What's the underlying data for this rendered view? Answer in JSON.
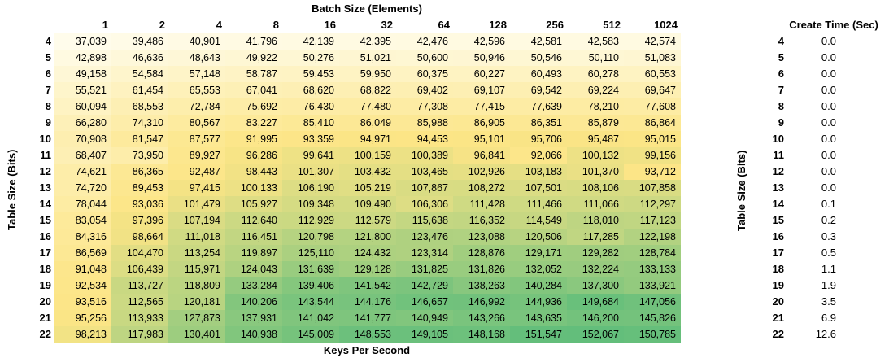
{
  "main": {
    "title": "Batch Size (Elements)",
    "footer": "Keys Per Second",
    "ylabel": "Table Size (Bits)",
    "columns": [
      "1",
      "2",
      "4",
      "8",
      "16",
      "32",
      "64",
      "128",
      "256",
      "512",
      "1024"
    ],
    "rows": [
      {
        "label": "4",
        "values": [
          "37,039",
          "39,486",
          "40,901",
          "41,796",
          "42,139",
          "42,395",
          "42,476",
          "42,596",
          "42,581",
          "42,583",
          "42,574"
        ]
      },
      {
        "label": "5",
        "values": [
          "42,898",
          "46,636",
          "48,643",
          "49,922",
          "50,276",
          "51,021",
          "50,600",
          "50,946",
          "50,546",
          "50,110",
          "51,083"
        ]
      },
      {
        "label": "6",
        "values": [
          "49,158",
          "54,584",
          "57,148",
          "58,787",
          "59,453",
          "59,950",
          "60,375",
          "60,227",
          "60,493",
          "60,278",
          "60,553"
        ]
      },
      {
        "label": "7",
        "values": [
          "55,521",
          "61,454",
          "65,553",
          "67,041",
          "68,620",
          "68,822",
          "69,402",
          "69,107",
          "69,542",
          "69,224",
          "69,647"
        ]
      },
      {
        "label": "8",
        "values": [
          "60,094",
          "68,553",
          "72,784",
          "75,692",
          "76,430",
          "77,480",
          "77,308",
          "77,415",
          "77,639",
          "78,210",
          "77,608"
        ]
      },
      {
        "label": "9",
        "values": [
          "66,280",
          "74,310",
          "80,567",
          "83,227",
          "85,410",
          "86,049",
          "85,988",
          "86,905",
          "86,351",
          "85,879",
          "86,864"
        ]
      },
      {
        "label": "10",
        "values": [
          "70,908",
          "81,547",
          "87,577",
          "91,995",
          "93,359",
          "94,971",
          "94,453",
          "95,101",
          "95,706",
          "95,487",
          "95,015"
        ]
      },
      {
        "label": "11",
        "values": [
          "68,407",
          "73,950",
          "89,927",
          "96,286",
          "99,641",
          "100,159",
          "100,389",
          "96,841",
          "92,066",
          "100,132",
          "99,156"
        ]
      },
      {
        "label": "12",
        "values": [
          "74,621",
          "86,365",
          "92,487",
          "98,443",
          "101,307",
          "103,432",
          "103,465",
          "102,926",
          "103,183",
          "101,370",
          "93,712"
        ]
      },
      {
        "label": "13",
        "values": [
          "74,720",
          "89,453",
          "97,415",
          "100,133",
          "106,190",
          "105,219",
          "107,867",
          "108,272",
          "107,501",
          "108,106",
          "107,858"
        ]
      },
      {
        "label": "14",
        "values": [
          "78,044",
          "93,036",
          "101,479",
          "105,927",
          "109,348",
          "109,490",
          "106,306",
          "111,428",
          "111,466",
          "111,066",
          "112,297"
        ]
      },
      {
        "label": "15",
        "values": [
          "83,054",
          "97,396",
          "107,194",
          "112,640",
          "112,929",
          "112,579",
          "115,638",
          "116,352",
          "114,549",
          "118,010",
          "117,123"
        ]
      },
      {
        "label": "16",
        "values": [
          "84,316",
          "98,664",
          "111,018",
          "116,451",
          "120,798",
          "121,800",
          "123,476",
          "123,088",
          "120,506",
          "117,285",
          "122,198"
        ]
      },
      {
        "label": "17",
        "values": [
          "86,569",
          "104,470",
          "113,254",
          "119,897",
          "125,110",
          "124,432",
          "123,314",
          "128,876",
          "129,171",
          "129,282",
          "128,784"
        ]
      },
      {
        "label": "18",
        "values": [
          "91,048",
          "106,439",
          "115,971",
          "124,043",
          "131,639",
          "129,128",
          "131,825",
          "131,826",
          "132,052",
          "132,224",
          "133,133"
        ]
      },
      {
        "label": "19",
        "values": [
          "92,534",
          "113,727",
          "118,809",
          "133,284",
          "139,406",
          "141,542",
          "142,729",
          "138,263",
          "140,284",
          "137,300",
          "133,921"
        ]
      },
      {
        "label": "20",
        "values": [
          "93,516",
          "112,565",
          "120,181",
          "140,206",
          "143,544",
          "144,176",
          "146,657",
          "146,992",
          "144,936",
          "149,684",
          "147,056"
        ]
      },
      {
        "label": "21",
        "values": [
          "95,256",
          "113,933",
          "127,873",
          "137,931",
          "141,042",
          "141,777",
          "140,949",
          "143,266",
          "143,635",
          "146,200",
          "145,826"
        ]
      },
      {
        "label": "22",
        "values": [
          "98,213",
          "117,983",
          "130,401",
          "140,938",
          "145,009",
          "148,553",
          "149,105",
          "148,168",
          "151,547",
          "152,067",
          "150,785"
        ]
      }
    ],
    "scale": {
      "min_color": "#FFFCEB",
      "mid_color": "#FCE586",
      "max_color": "#63BE7B"
    }
  },
  "side": {
    "title": "Create Time (Sec)",
    "ylabel": "Table Size (Bits)",
    "rows": [
      {
        "label": "4",
        "value": "0.0"
      },
      {
        "label": "5",
        "value": "0.0"
      },
      {
        "label": "6",
        "value": "0.0"
      },
      {
        "label": "7",
        "value": "0.0"
      },
      {
        "label": "8",
        "value": "0.0"
      },
      {
        "label": "9",
        "value": "0.0"
      },
      {
        "label": "10",
        "value": "0.0"
      },
      {
        "label": "11",
        "value": "0.0"
      },
      {
        "label": "12",
        "value": "0.0"
      },
      {
        "label": "13",
        "value": "0.0"
      },
      {
        "label": "14",
        "value": "0.1"
      },
      {
        "label": "15",
        "value": "0.2"
      },
      {
        "label": "16",
        "value": "0.3"
      },
      {
        "label": "17",
        "value": "0.5"
      },
      {
        "label": "18",
        "value": "1.1"
      },
      {
        "label": "19",
        "value": "1.9"
      },
      {
        "label": "20",
        "value": "3.5"
      },
      {
        "label": "21",
        "value": "6.9"
      },
      {
        "label": "22",
        "value": "12.6"
      }
    ]
  }
}
